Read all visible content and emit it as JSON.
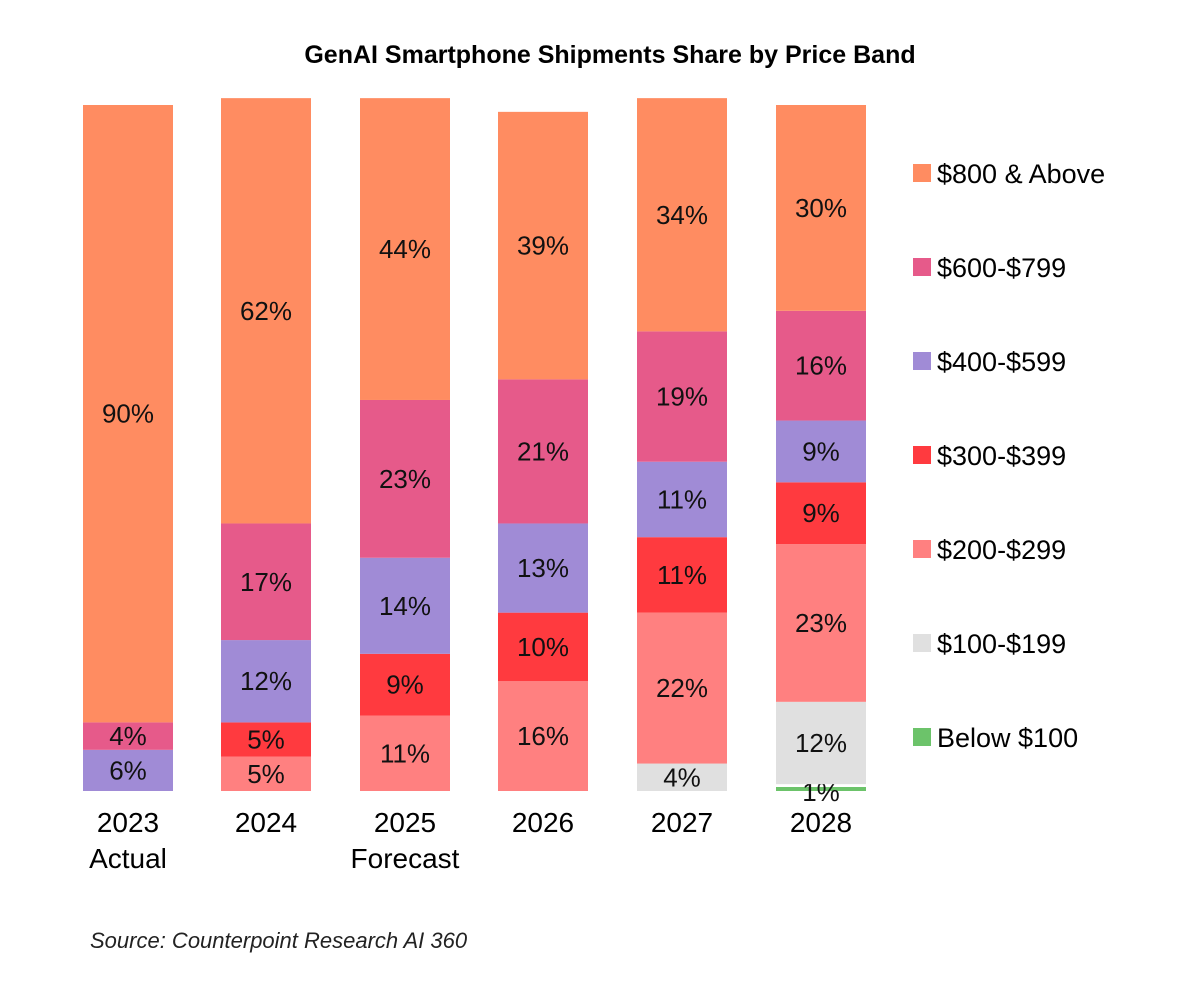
{
  "chart_data": {
    "type": "bar",
    "stacked": true,
    "title": "GenAI Smartphone Shipments Share by Price Band",
    "xlabel": "",
    "ylabel": "",
    "ylim": [
      0,
      100
    ],
    "unit": "%",
    "grid": false,
    "legend_position": "right",
    "categories": [
      "2023",
      "2024",
      "2025",
      "2026",
      "2027",
      "2028"
    ],
    "category_sublabels": [
      "Actual",
      "",
      "Forecast",
      "",
      "",
      ""
    ],
    "series": [
      {
        "name": "Below $100",
        "color": "#6cc36a",
        "values": [
          0,
          0,
          0,
          0,
          0,
          1
        ]
      },
      {
        "name": "$100-$199",
        "color": "#e0e0e0",
        "values": [
          0,
          0,
          0,
          0,
          4,
          12
        ]
      },
      {
        "name": "$200-$299",
        "color": "#ff8080",
        "values": [
          0,
          5,
          11,
          16,
          22,
          23
        ]
      },
      {
        "name": "$300-$399",
        "color": "#ff3a3f",
        "values": [
          0,
          5,
          9,
          10,
          11,
          9
        ]
      },
      {
        "name": "$400-$599",
        "color": "#a08bd6",
        "values": [
          6,
          12,
          14,
          13,
          11,
          9
        ]
      },
      {
        "name": "$600-$799",
        "color": "#e65a8a",
        "values": [
          4,
          17,
          23,
          21,
          19,
          16
        ]
      },
      {
        "name": "$800 & Above",
        "color": "#ff8c61",
        "values": [
          90,
          62,
          44,
          39,
          34,
          30
        ]
      }
    ],
    "legend_order": [
      "$800 & Above",
      "$600-$799",
      "$400-$599",
      "$300-$399",
      "$200-$299",
      "$100-$199",
      "Below $100"
    ],
    "source": "Source: Counterpoint Research AI 360"
  }
}
